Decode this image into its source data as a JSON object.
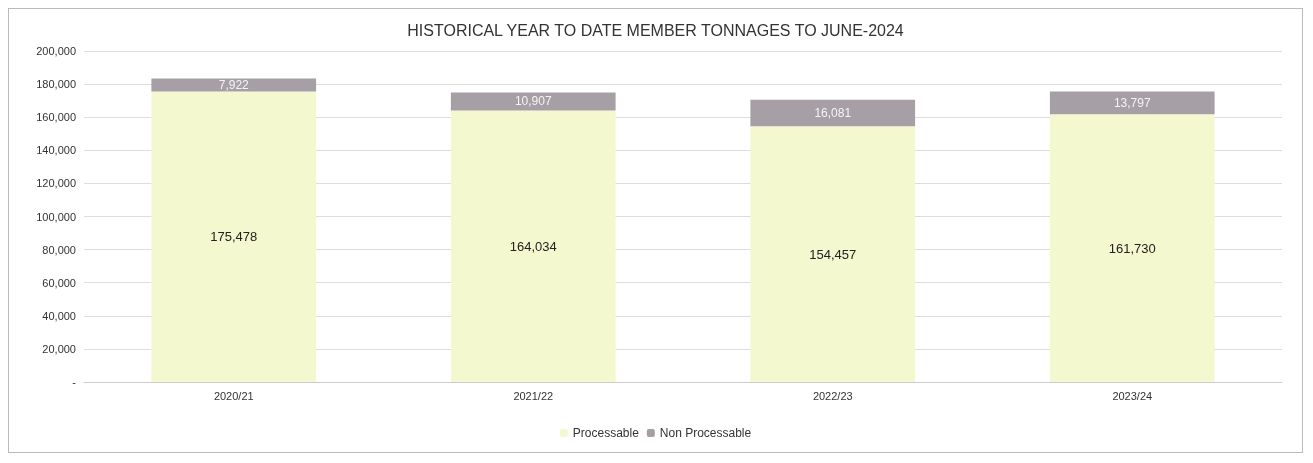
{
  "chart_data": {
    "type": "bar",
    "title": "HISTORICAL YEAR TO DATE MEMBER TONNAGES TO JUNE-2024",
    "categories": [
      "2020/21",
      "2021/22",
      "2022/23",
      "2023/24"
    ],
    "stacked": true,
    "series": [
      {
        "name": "Processable",
        "color": "#f4f8cf",
        "values": [
          175478,
          164034,
          154457,
          161730
        ],
        "value_labels": [
          "175,478",
          "164,034",
          "154,457",
          "161,730"
        ]
      },
      {
        "name": "Non Processable",
        "color": "#a6a0a6",
        "values": [
          7922,
          10907,
          16081,
          13797
        ],
        "value_labels": [
          "7,922",
          "10,907",
          "16,081",
          "13,797"
        ]
      }
    ],
    "ylim": [
      0,
      200000
    ],
    "yticks": [
      {
        "value": 0,
        "label": "-"
      },
      {
        "value": 20000,
        "label": "20,000"
      },
      {
        "value": 40000,
        "label": "40,000"
      },
      {
        "value": 60000,
        "label": "60,000"
      },
      {
        "value": 80000,
        "label": "80,000"
      },
      {
        "value": 100000,
        "label": "100,000"
      },
      {
        "value": 120000,
        "label": "120,000"
      },
      {
        "value": 140000,
        "label": "140,000"
      },
      {
        "value": 160000,
        "label": "160,000"
      },
      {
        "value": 180000,
        "label": "180,000"
      },
      {
        "value": 200000,
        "label": "200,000"
      }
    ],
    "grid": "y",
    "legend": "bottom"
  }
}
